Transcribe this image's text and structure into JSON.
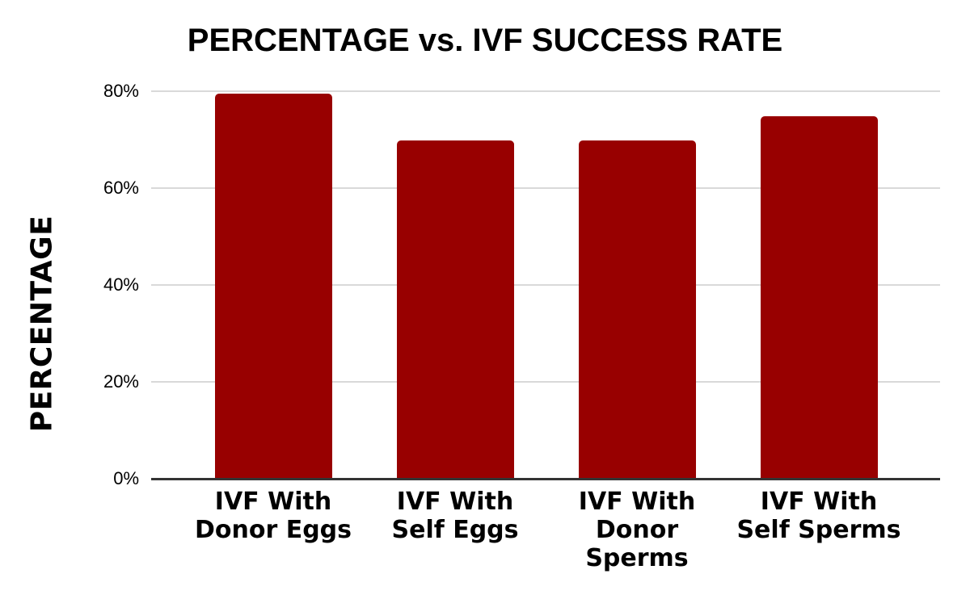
{
  "chart_data": {
    "type": "bar",
    "title": "PERCENTAGE vs. IVF SUCCESS RATE",
    "xlabel": "",
    "ylabel": "PERCENTAGE",
    "categories": [
      "IVF With Donor Eggs",
      "IVF With Self Eggs",
      "IVF With Donor Sperms",
      "IVF With Self Sperms"
    ],
    "category_label_lines": [
      [
        "IVF With",
        "Donor Eggs"
      ],
      [
        "IVF With",
        "Self Eggs"
      ],
      [
        "IVF With",
        "Donor",
        "Sperms"
      ],
      [
        "IVF With",
        "Self Sperms"
      ]
    ],
    "values": [
      79.5,
      69.8,
      69.8,
      74.8
    ],
    "unit": "%",
    "ylim": [
      0,
      84
    ],
    "yticks": [
      {
        "value": 0,
        "label": "0%"
      },
      {
        "value": 20,
        "label": "20%"
      },
      {
        "value": 40,
        "label": "40%"
      },
      {
        "value": 60,
        "label": "60%"
      },
      {
        "value": 80,
        "label": "80%"
      }
    ],
    "grid": true,
    "legend": false,
    "colors": {
      "bar": "#980000",
      "gridline": "#d9d9d9",
      "axis_line": "#333333",
      "text": "#000000",
      "background": "#ffffff"
    }
  }
}
